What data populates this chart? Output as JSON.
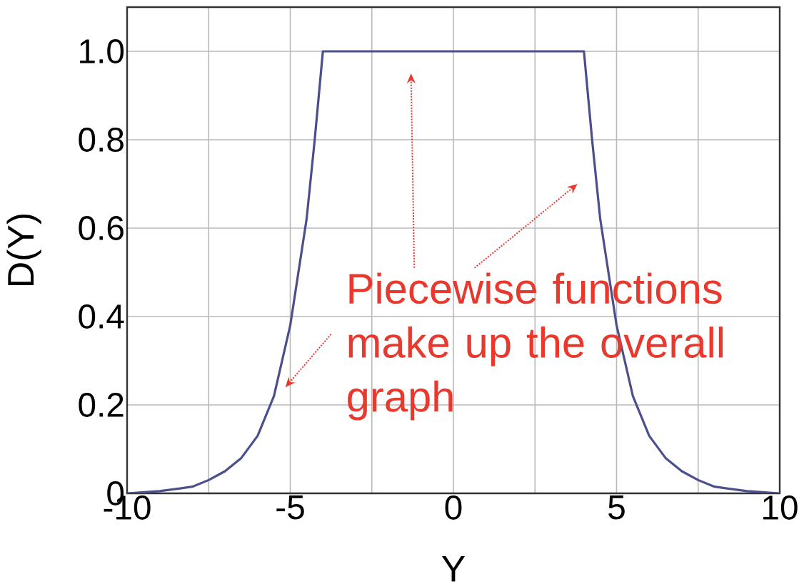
{
  "chart_data": {
    "type": "line",
    "xlabel": "Y",
    "ylabel": "D(Y)",
    "x": [
      -10,
      -9,
      -8,
      -7.5,
      -7,
      -6.5,
      -6,
      -5.5,
      -5,
      -4.5,
      -4.25,
      -4,
      4,
      4.25,
      4.5,
      5,
      5.5,
      6,
      6.5,
      7,
      7.5,
      8,
      9,
      10
    ],
    "series": [
      {
        "color": "#4b4f8c",
        "values": [
          0,
          0.005,
          0.015,
          0.03,
          0.05,
          0.08,
          0.13,
          0.22,
          0.38,
          0.62,
          0.8,
          1,
          1,
          0.8,
          0.62,
          0.38,
          0.22,
          0.13,
          0.08,
          0.05,
          0.03,
          0.015,
          0.005,
          0
        ]
      }
    ],
    "xlim": [
      -10,
      10
    ],
    "ylim": [
      0,
      1.1
    ],
    "xticks": [
      -10,
      {
        "value": -7.5,
        "label": null
      },
      -5,
      {
        "value": -2.5,
        "label": null
      },
      0,
      {
        "value": 2.5,
        "label": null
      },
      5,
      {
        "value": 7.5,
        "label": null
      },
      10
    ],
    "yticks": [
      0,
      0.2,
      0.4,
      0.6,
      0.8,
      {
        "value": 1,
        "label": "1.0"
      }
    ],
    "grid": true,
    "annotations": [
      "Piecewise functions make up the overall graph"
    ]
  }
}
